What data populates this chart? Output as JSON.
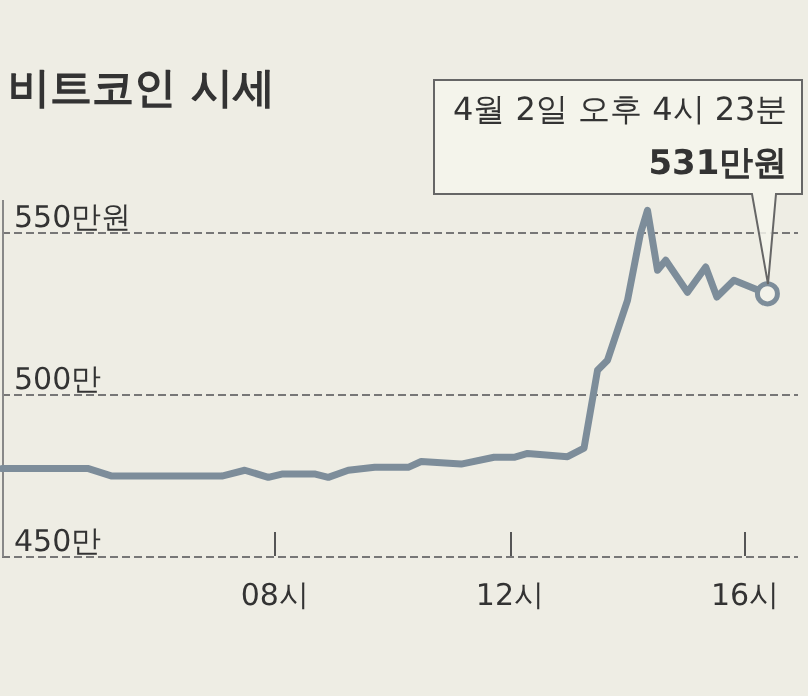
{
  "chart_data": {
    "type": "line",
    "title": "비트코인 시세",
    "x": [
      3.36,
      4.83,
      5.23,
      7.1,
      7.49,
      7.89,
      8.12,
      8.69,
      8.91,
      9.25,
      9.7,
      10.27,
      10.49,
      11.17,
      11.73,
      12.07,
      12.3,
      12.98,
      13.26,
      13.49,
      13.66,
      14.0,
      14.22,
      14.34,
      14.51,
      14.65,
      15.02,
      15.33,
      15.52,
      15.81,
      16.38
    ],
    "series": [
      {
        "color": "#7d8d9a",
        "values": [
          477,
          477,
          474.7,
          474.7,
          476.5,
          474.3,
          475.3,
          475.3,
          474.3,
          476.5,
          477.4,
          477.4,
          479.2,
          478.4,
          480.5,
          480.5,
          481.7,
          480.7,
          483.3,
          507.4,
          510.5,
          529,
          549.6,
          556.8,
          538.3,
          541.4,
          531.5,
          539.3,
          530,
          535.2,
          531
        ]
      }
    ],
    "xlim": [
      3.36,
      16.9
    ],
    "ylim": [
      450,
      560
    ],
    "xticks": [
      {
        "value": 8,
        "label": "08시"
      },
      {
        "value": 12,
        "label": "12시"
      },
      {
        "value": 16,
        "label": "16시"
      }
    ],
    "yticks": [
      {
        "value": 450,
        "label": "450만"
      },
      {
        "value": 500,
        "label": "500만"
      },
      {
        "value": 550,
        "label": "550만원"
      }
    ],
    "grid": "y",
    "annotations": [
      "4월 2일 오후 4시 23분",
      "531만원"
    ]
  }
}
